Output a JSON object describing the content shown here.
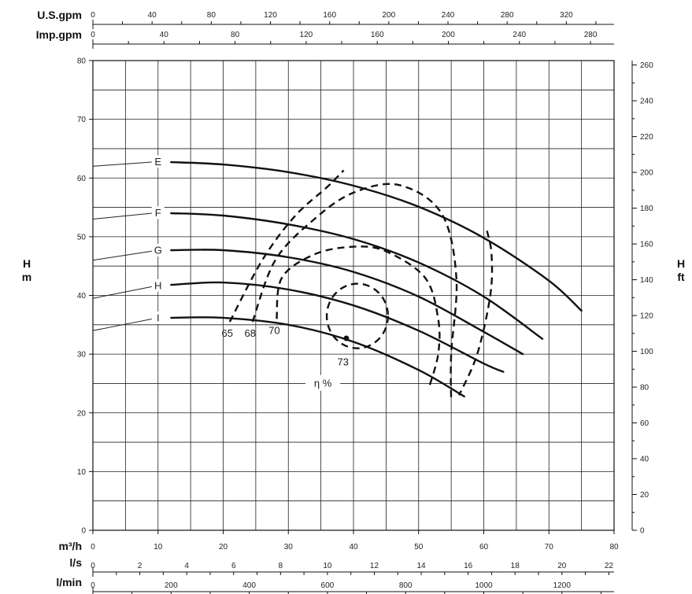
{
  "chart_data": {
    "type": "line",
    "x_unit": "m³/h",
    "y_unit_left": "H\nm",
    "y_unit_right": "H\nft",
    "xlim": [
      0,
      80
    ],
    "ylim": [
      0,
      80
    ],
    "x_ticks": [
      0,
      10,
      20,
      30,
      40,
      50,
      60,
      70,
      80
    ],
    "y_ticks": [
      0,
      10,
      20,
      30,
      40,
      50,
      60,
      70,
      80
    ],
    "right_axis": {
      "label": "H ft",
      "ticks": [
        0,
        20,
        40,
        60,
        80,
        100,
        120,
        140,
        160,
        180,
        200,
        220,
        240,
        260
      ]
    },
    "secondary_x_axes": [
      {
        "label": "U.S.gpm",
        "position": "top",
        "ticks": [
          0,
          40,
          80,
          120,
          160,
          200,
          240,
          280,
          320
        ],
        "m3h_per_unit": 0.2271
      },
      {
        "label": "Imp.gpm",
        "position": "top",
        "ticks": [
          0,
          40,
          80,
          120,
          160,
          200,
          240,
          280
        ],
        "m3h_per_unit": 0.2728
      },
      {
        "label": "l/s",
        "position": "bottom",
        "ticks": [
          0,
          2,
          4,
          6,
          8,
          10,
          12,
          14,
          16,
          18,
          20,
          22
        ],
        "m3h_per_unit": 3.6
      },
      {
        "label": "l/min",
        "position": "bottom",
        "ticks": [
          0,
          200,
          400,
          600,
          800,
          1000,
          1200
        ],
        "m3h_per_unit": 0.06
      }
    ],
    "series": [
      {
        "name": "E",
        "x": [
          0,
          10,
          20,
          30,
          40,
          50,
          60,
          70,
          75
        ],
        "y": [
          62,
          62.8,
          62.3,
          61,
          58.7,
          55.1,
          49.8,
          42.5,
          37.4
        ]
      },
      {
        "name": "F",
        "x": [
          0,
          10,
          20,
          30,
          40,
          50,
          60,
          69
        ],
        "y": [
          53,
          54.1,
          53.6,
          52.1,
          49.6,
          45.6,
          39.8,
          32.6
        ]
      },
      {
        "name": "G",
        "x": [
          0,
          10,
          20,
          30,
          40,
          50,
          60,
          66
        ],
        "y": [
          46,
          47.7,
          47.7,
          46.5,
          44.0,
          39.8,
          33.8,
          30
        ]
      },
      {
        "name": "H",
        "x": [
          0,
          10,
          20,
          30,
          40,
          50,
          60,
          63
        ],
        "y": [
          39.5,
          41.7,
          42.2,
          41.0,
          38.3,
          34.0,
          28.4,
          27
        ]
      },
      {
        "name": "I",
        "x": [
          0,
          10,
          20,
          30,
          40,
          50,
          57
        ],
        "y": [
          34,
          36.2,
          36.2,
          35.0,
          32.1,
          27.3,
          22.8
        ]
      }
    ],
    "efficiency_label": "η %",
    "efficiency_contours": [
      {
        "label": "65",
        "x": [
          21,
          26,
          31,
          36,
          38.5
        ],
        "y": [
          35.5,
          46,
          53.5,
          58.5,
          61.3
        ]
      },
      {
        "label": "68",
        "x": [
          24.5,
          28,
          34,
          40,
          47,
          53.5,
          55.8,
          55,
          55
        ],
        "y": [
          35.5,
          46,
          53,
          57.5,
          58.8,
          54,
          43,
          30,
          22
        ]
      },
      {
        "label": "70",
        "x": [
          28.2,
          29,
          34,
          40,
          45,
          51,
          53,
          53,
          51.5
        ],
        "y": [
          36,
          43,
          47,
          48.3,
          47.5,
          43,
          36,
          30,
          24
        ]
      },
      {
        "label": "73",
        "center": [
          40.6,
          36.5
        ],
        "rx": 4.7,
        "ry": 5.5,
        "marker": [
          38.9,
          32.7
        ]
      },
      {
        "label": "",
        "x": [
          60.5,
          61.2,
          61,
          59,
          56.2
        ],
        "y": [
          51,
          47,
          40,
          30,
          23
        ]
      }
    ]
  }
}
